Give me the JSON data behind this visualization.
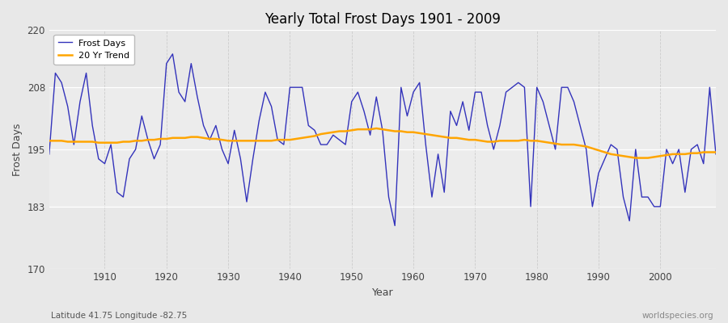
{
  "title": "Yearly Total Frost Days 1901 - 2009",
  "xlabel": "Year",
  "ylabel": "Frost Days",
  "footnote_left": "Latitude 41.75 Longitude -82.75",
  "footnote_right": "worldspecies.org",
  "ylim": [
    170,
    220
  ],
  "yticks": [
    170,
    183,
    195,
    208,
    220
  ],
  "xlim": [
    1901,
    2009
  ],
  "fig_bg_color": "#e8e8e8",
  "plot_bg_color": "#e8e8e8",
  "inner_bg_color": "#dcdcdc",
  "frost_color": "#3333bb",
  "trend_color": "#ffa500",
  "years": [
    1901,
    1902,
    1903,
    1904,
    1905,
    1906,
    1907,
    1908,
    1909,
    1910,
    1911,
    1912,
    1913,
    1914,
    1915,
    1916,
    1917,
    1918,
    1919,
    1920,
    1921,
    1922,
    1923,
    1924,
    1925,
    1926,
    1927,
    1928,
    1929,
    1930,
    1931,
    1932,
    1933,
    1934,
    1935,
    1936,
    1937,
    1938,
    1939,
    1940,
    1941,
    1942,
    1943,
    1944,
    1945,
    1946,
    1947,
    1948,
    1949,
    1950,
    1951,
    1952,
    1953,
    1954,
    1955,
    1956,
    1957,
    1958,
    1959,
    1960,
    1961,
    1962,
    1963,
    1964,
    1965,
    1966,
    1967,
    1968,
    1969,
    1970,
    1971,
    1972,
    1973,
    1974,
    1975,
    1976,
    1977,
    1978,
    1979,
    1980,
    1981,
    1982,
    1983,
    1984,
    1985,
    1986,
    1987,
    1988,
    1989,
    1990,
    1991,
    1992,
    1993,
    1994,
    1995,
    1996,
    1997,
    1998,
    1999,
    2000,
    2001,
    2002,
    2003,
    2004,
    2005,
    2006,
    2007,
    2008,
    2009
  ],
  "frost_days": [
    194,
    211,
    209,
    204,
    196,
    205,
    211,
    200,
    193,
    192,
    196,
    186,
    185,
    193,
    195,
    202,
    197,
    193,
    196,
    213,
    215,
    207,
    205,
    213,
    206,
    200,
    197,
    200,
    195,
    192,
    199,
    193,
    184,
    193,
    201,
    207,
    204,
    197,
    196,
    208,
    208,
    208,
    200,
    199,
    196,
    196,
    198,
    197,
    196,
    205,
    207,
    203,
    198,
    206,
    199,
    185,
    179,
    208,
    202,
    207,
    209,
    196,
    185,
    194,
    186,
    203,
    200,
    205,
    199,
    207,
    207,
    200,
    195,
    200,
    207,
    208,
    209,
    208,
    183,
    208,
    205,
    200,
    195,
    208,
    208,
    205,
    200,
    195,
    183,
    190,
    193,
    196,
    195,
    185,
    180,
    195,
    185,
    185,
    183,
    183,
    195,
    192,
    195,
    186,
    195,
    196,
    192,
    208,
    194
  ],
  "trend_values": [
    196.8,
    196.8,
    196.8,
    196.6,
    196.6,
    196.6,
    196.6,
    196.6,
    196.4,
    196.4,
    196.4,
    196.4,
    196.6,
    196.6,
    196.8,
    196.8,
    197.0,
    197.0,
    197.2,
    197.2,
    197.4,
    197.4,
    197.4,
    197.6,
    197.6,
    197.4,
    197.2,
    197.2,
    197.0,
    196.8,
    196.8,
    196.8,
    196.8,
    196.8,
    196.8,
    196.8,
    196.8,
    197.0,
    197.0,
    197.0,
    197.2,
    197.4,
    197.6,
    197.8,
    198.2,
    198.4,
    198.6,
    198.8,
    198.8,
    199.0,
    199.2,
    199.2,
    199.2,
    199.4,
    199.2,
    199.0,
    198.8,
    198.8,
    198.6,
    198.6,
    198.4,
    198.2,
    198.0,
    197.8,
    197.6,
    197.4,
    197.4,
    197.2,
    197.0,
    197.0,
    196.8,
    196.6,
    196.6,
    196.8,
    196.8,
    196.8,
    196.8,
    197.0,
    196.8,
    196.8,
    196.6,
    196.4,
    196.2,
    196.0,
    196.0,
    196.0,
    195.8,
    195.6,
    195.2,
    194.8,
    194.4,
    194.0,
    193.8,
    193.6,
    193.4,
    193.2,
    193.2,
    193.2,
    193.4,
    193.6,
    193.8,
    194.0,
    194.0,
    194.0,
    194.2,
    194.2,
    194.4,
    194.4,
    194.4
  ]
}
